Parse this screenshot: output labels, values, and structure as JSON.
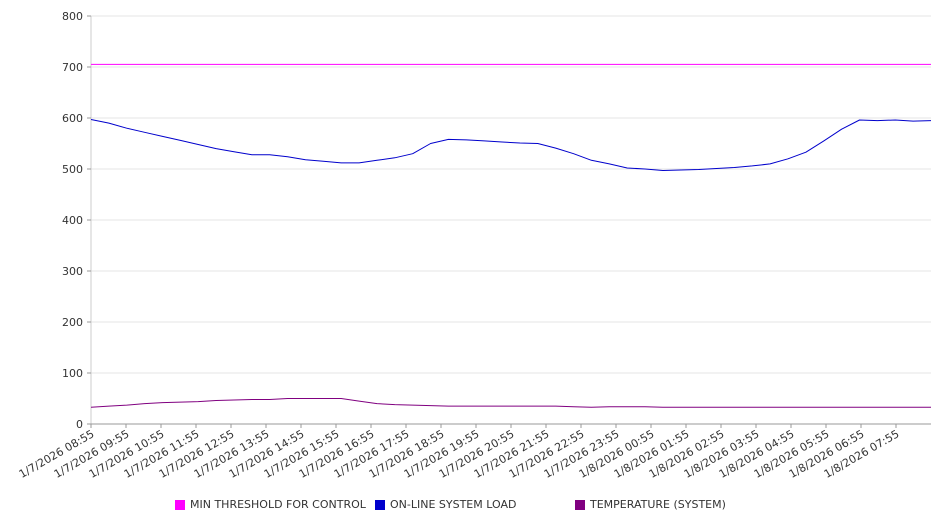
{
  "chart_data": {
    "type": "line",
    "title": "",
    "xlabel": "",
    "ylabel": "",
    "ylim": [
      0,
      800
    ],
    "y_ticks": [
      0,
      100,
      200,
      300,
      400,
      500,
      600,
      700,
      800
    ],
    "grid": true,
    "legend_position": "bottom",
    "x_tick_labels": [
      "1/7/2026 08:55",
      "1/7/2026 09:55",
      "1/7/2026 10:55",
      "1/7/2026 11:55",
      "1/7/2026 12:55",
      "1/7/2026 13:55",
      "1/7/2026 14:55",
      "1/7/2026 15:55",
      "1/7/2026 16:55",
      "1/7/2026 17:55",
      "1/7/2026 18:55",
      "1/7/2026 19:55",
      "1/7/2026 20:55",
      "1/7/2026 21:55",
      "1/7/2026 22:55",
      "1/7/2026 23:55",
      "1/8/2026 00:55",
      "1/8/2026 01:55",
      "1/8/2026 02:55",
      "1/8/2026 03:55",
      "1/8/2026 04:55",
      "1/8/2026 05:55",
      "1/8/2026 06:55",
      "1/8/2026 07:55"
    ],
    "x": [
      "1/7/2026 08:55",
      "1/7/2026 09:25",
      "1/7/2026 09:55",
      "1/7/2026 10:25",
      "1/7/2026 10:55",
      "1/7/2026 11:25",
      "1/7/2026 11:55",
      "1/7/2026 12:25",
      "1/7/2026 12:55",
      "1/7/2026 13:25",
      "1/7/2026 13:55",
      "1/7/2026 14:25",
      "1/7/2026 14:55",
      "1/7/2026 15:25",
      "1/7/2026 15:55",
      "1/7/2026 16:25",
      "1/7/2026 16:55",
      "1/7/2026 17:25",
      "1/7/2026 17:55",
      "1/7/2026 18:25",
      "1/7/2026 18:55",
      "1/7/2026 19:25",
      "1/7/2026 19:55",
      "1/7/2026 20:25",
      "1/7/2026 20:55",
      "1/7/2026 21:25",
      "1/7/2026 21:55",
      "1/7/2026 22:25",
      "1/7/2026 22:55",
      "1/7/2026 23:25",
      "1/7/2026 23:55",
      "1/8/2026 00:25",
      "1/8/2026 00:55",
      "1/8/2026 01:25",
      "1/8/2026 01:55",
      "1/8/2026 02:25",
      "1/8/2026 02:55",
      "1/8/2026 03:25",
      "1/8/2026 03:55",
      "1/8/2026 04:25",
      "1/8/2026 04:55",
      "1/8/2026 05:25",
      "1/8/2026 05:55",
      "1/8/2026 06:25",
      "1/8/2026 06:55",
      "1/8/2026 07:25",
      "1/8/2026 07:55",
      "1/8/2026 08:25"
    ],
    "series": [
      {
        "name": "MIN THRESHOLD FOR CONTROL",
        "color": "#ff00ff",
        "values": [
          705,
          705,
          705,
          705,
          705,
          705,
          705,
          705,
          705,
          705,
          705,
          705,
          705,
          705,
          705,
          705,
          705,
          705,
          705,
          705,
          705,
          705,
          705,
          705,
          705,
          705,
          705,
          705,
          705,
          705,
          705,
          705,
          705,
          705,
          705,
          705,
          705,
          705,
          705,
          705,
          705,
          705,
          705,
          705,
          705,
          705,
          705,
          705
        ]
      },
      {
        "name": "ON-LINE SYSTEM LOAD",
        "color": "#0000cc",
        "values": [
          597,
          590,
          580,
          572,
          564,
          556,
          548,
          540,
          534,
          528,
          528,
          524,
          518,
          515,
          512,
          512,
          517,
          522,
          530,
          550,
          558,
          557,
          555,
          553,
          551,
          550,
          541,
          530,
          517,
          510,
          502,
          500,
          497,
          498,
          499,
          501,
          503,
          506,
          510,
          520,
          533,
          555,
          578,
          596,
          595,
          596,
          594,
          595
        ]
      },
      {
        "name": "TEMPERATURE (SYSTEM)",
        "color": "#800080",
        "values": [
          33,
          35,
          37,
          40,
          42,
          43,
          44,
          46,
          47,
          48,
          48,
          50,
          50,
          50,
          50,
          45,
          40,
          38,
          37,
          36,
          35,
          35,
          35,
          35,
          35,
          35,
          35,
          34,
          33,
          34,
          34,
          34,
          33,
          33,
          33,
          33,
          33,
          33,
          33,
          33,
          33,
          33,
          33,
          33,
          33,
          33,
          33,
          33
        ]
      }
    ]
  }
}
